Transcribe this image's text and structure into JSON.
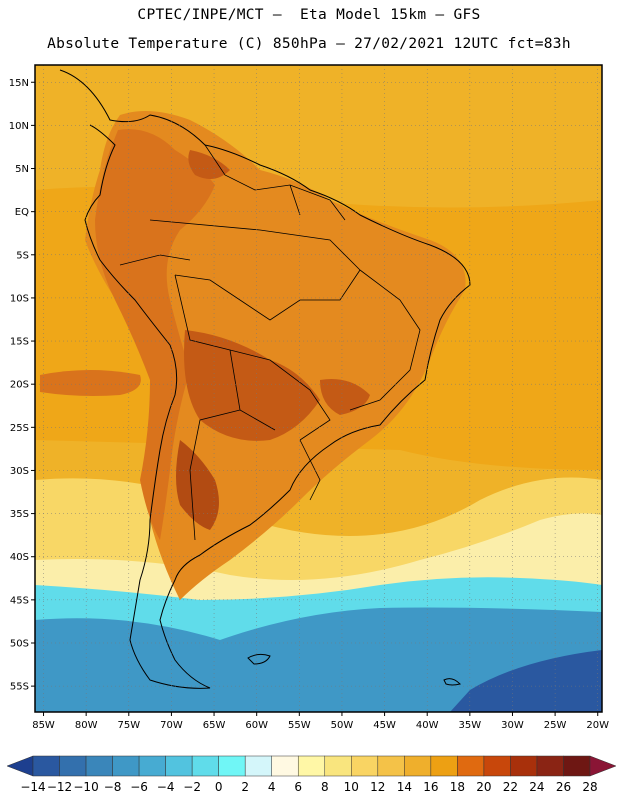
{
  "header": {
    "line1": "CPTEC/INPE/MCT –  Eta Model 15km – GFS",
    "line2": "Absolute Temperature (C) 850hPa – 27/02/2021 12UTC fct=83h"
  },
  "map": {
    "lon_range": [
      -86,
      -19.5
    ],
    "lat_range": [
      -58,
      17
    ],
    "lon_ticks": [
      {
        "value": -85,
        "label": "85W"
      },
      {
        "value": -80,
        "label": "80W"
      },
      {
        "value": -75,
        "label": "75W"
      },
      {
        "value": -70,
        "label": "70W"
      },
      {
        "value": -65,
        "label": "65W"
      },
      {
        "value": -60,
        "label": "60W"
      },
      {
        "value": -55,
        "label": "55W"
      },
      {
        "value": -50,
        "label": "50W"
      },
      {
        "value": -45,
        "label": "45W"
      },
      {
        "value": -40,
        "label": "40W"
      },
      {
        "value": -35,
        "label": "35W"
      },
      {
        "value": -30,
        "label": "30W"
      },
      {
        "value": -25,
        "label": "25W"
      },
      {
        "value": -20,
        "label": "20W"
      }
    ],
    "lat_ticks": [
      {
        "value": 15,
        "label": "15N"
      },
      {
        "value": 10,
        "label": "10N"
      },
      {
        "value": 5,
        "label": "5N"
      },
      {
        "value": 0,
        "label": "EQ"
      },
      {
        "value": -5,
        "label": "5S"
      },
      {
        "value": -10,
        "label": "10S"
      },
      {
        "value": -15,
        "label": "15S"
      },
      {
        "value": -20,
        "label": "20S"
      },
      {
        "value": -25,
        "label": "25S"
      },
      {
        "value": -30,
        "label": "30S"
      },
      {
        "value": -35,
        "label": "35S"
      },
      {
        "value": -40,
        "label": "40S"
      },
      {
        "value": -45,
        "label": "45S"
      },
      {
        "value": -50,
        "label": "50S"
      },
      {
        "value": -55,
        "label": "55S"
      }
    ]
  },
  "colorbar": {
    "labels": [
      "-14",
      "-12",
      "-10",
      "-8",
      "-6",
      "-4",
      "-2",
      "0",
      "2",
      "4",
      "6",
      "8",
      "10",
      "12",
      "14",
      "16",
      "18",
      "20",
      "22",
      "24",
      "26",
      "28"
    ],
    "colors": [
      "#1d3f8f",
      "#2a58a0",
      "#3370ad",
      "#3a86ba",
      "#3f98c6",
      "#47abd2",
      "#52c3df",
      "#60dcea",
      "#70f6f6",
      "#d4f6fa",
      "#fff9e2",
      "#fff7a6",
      "#f9e57e",
      "#f9d463",
      "#f4c248",
      "#efaf2c",
      "#eda013",
      "#e06a10",
      "#c8470b",
      "#a8300b",
      "#8a2414",
      "#6e1713",
      "#8a1535"
    ]
  },
  "regions": [
    {
      "name": "background",
      "color": "#efb228"
    },
    {
      "name": "north-ocean-band",
      "color": "#efa718"
    },
    {
      "name": "continent-warm",
      "color": "#e48a1f"
    },
    {
      "name": "andes-hot",
      "color": "#d9731c"
    },
    {
      "name": "chaco-hot",
      "color": "#c45a15"
    },
    {
      "name": "argentina-core",
      "color": "#b24b12"
    },
    {
      "name": "south-atl-yellow",
      "color": "#f8d766"
    },
    {
      "name": "south-atl-pale",
      "color": "#fbeeaa"
    },
    {
      "name": "southern-cyan",
      "color": "#60dcea"
    },
    {
      "name": "southern-blue",
      "color": "#3f98c6"
    },
    {
      "name": "deep-blue",
      "color": "#2a58a0"
    }
  ]
}
